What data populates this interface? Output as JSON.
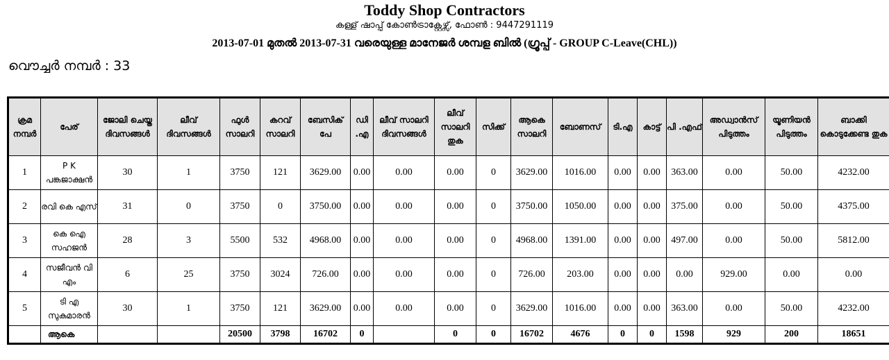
{
  "header": {
    "title": "Toddy Shop Contractors",
    "subtitle": "കള്ള് ഷാപ്പ് കോൺട്രാക്റ്റേഴ്സ്, ഫോൺ : 9447291119",
    "period": "2013-07-01 മുതൽ 2013-07-31 വരെയുള്ള മാനേജർ ശമ്പള ബിൽ (ഗ്രൂപ്പ് - GROUP C-Leave(CHL))",
    "voucher": "വൌച്ചർ നമ്പർ : 33"
  },
  "table": {
    "columns": [
      "ക്രമ നമ്പർ",
      "പേര്",
      "ജോലി ചെയ്ത ദിവസങ്ങൾ",
      "ലീവ് ദിവസങ്ങൾ",
      "ഫുൾ സാലറി",
      "കറവ് സാലറി",
      "ബേസിക് പേ",
      "ഡി .എ",
      "ലീവ് സാലറി ദിവസങ്ങൾ",
      "ലീവ് സാലറി തുക",
      "സിക്ക്",
      "ആകെ സാലറി",
      "ബോണസ്",
      "ടി.എ",
      "കാട്ട്",
      "പി .എഫ്",
      "അഡ്വാൻസ് പിടുത്തം",
      "യൂണിയൻ പിടുത്തം",
      "ബാക്കി കൊടുക്കേണ്ട തുക"
    ],
    "rows": [
      [
        "1",
        "P K പങ്കജാക്ഷൻ",
        "30",
        "1",
        "3750",
        "121",
        "3629.00",
        "0.00",
        "0.00",
        "0.00",
        "0",
        "3629.00",
        "1016.00",
        "0.00",
        "0.00",
        "363.00",
        "0.00",
        "50.00",
        "4232.00"
      ],
      [
        "2",
        "രവി കെ എസ്",
        "31",
        "0",
        "3750",
        "0",
        "3750.00",
        "0.00",
        "0.00",
        "0.00",
        "0",
        "3750.00",
        "1050.00",
        "0.00",
        "0.00",
        "375.00",
        "0.00",
        "50.00",
        "4375.00"
      ],
      [
        "3",
        "കെ ഐ സഹജൻ",
        "28",
        "3",
        "5500",
        "532",
        "4968.00",
        "0.00",
        "0.00",
        "0.00",
        "0",
        "4968.00",
        "1391.00",
        "0.00",
        "0.00",
        "497.00",
        "0.00",
        "50.00",
        "5812.00"
      ],
      [
        "4",
        "സജീവൻ വി എം",
        "6",
        "25",
        "3750",
        "3024",
        "726.00",
        "0.00",
        "0.00",
        "0.00",
        "0",
        "726.00",
        "203.00",
        "0.00",
        "0.00",
        "0.00",
        "929.00",
        "0.00",
        "0.00"
      ],
      [
        "5",
        "ടി എ സുകുമാരൻ",
        "30",
        "1",
        "3750",
        "121",
        "3629.00",
        "0.00",
        "0.00",
        "0.00",
        "0",
        "3629.00",
        "1016.00",
        "0.00",
        "0.00",
        "363.00",
        "0.00",
        "50.00",
        "4232.00"
      ]
    ],
    "total": {
      "label": "ആകെ",
      "values": [
        "",
        "",
        "",
        "20500",
        "3798",
        "16702",
        "0",
        "",
        "0",
        "0",
        "16702",
        "4676",
        "0",
        "0",
        "1598",
        "929",
        "200",
        "18651"
      ]
    }
  }
}
